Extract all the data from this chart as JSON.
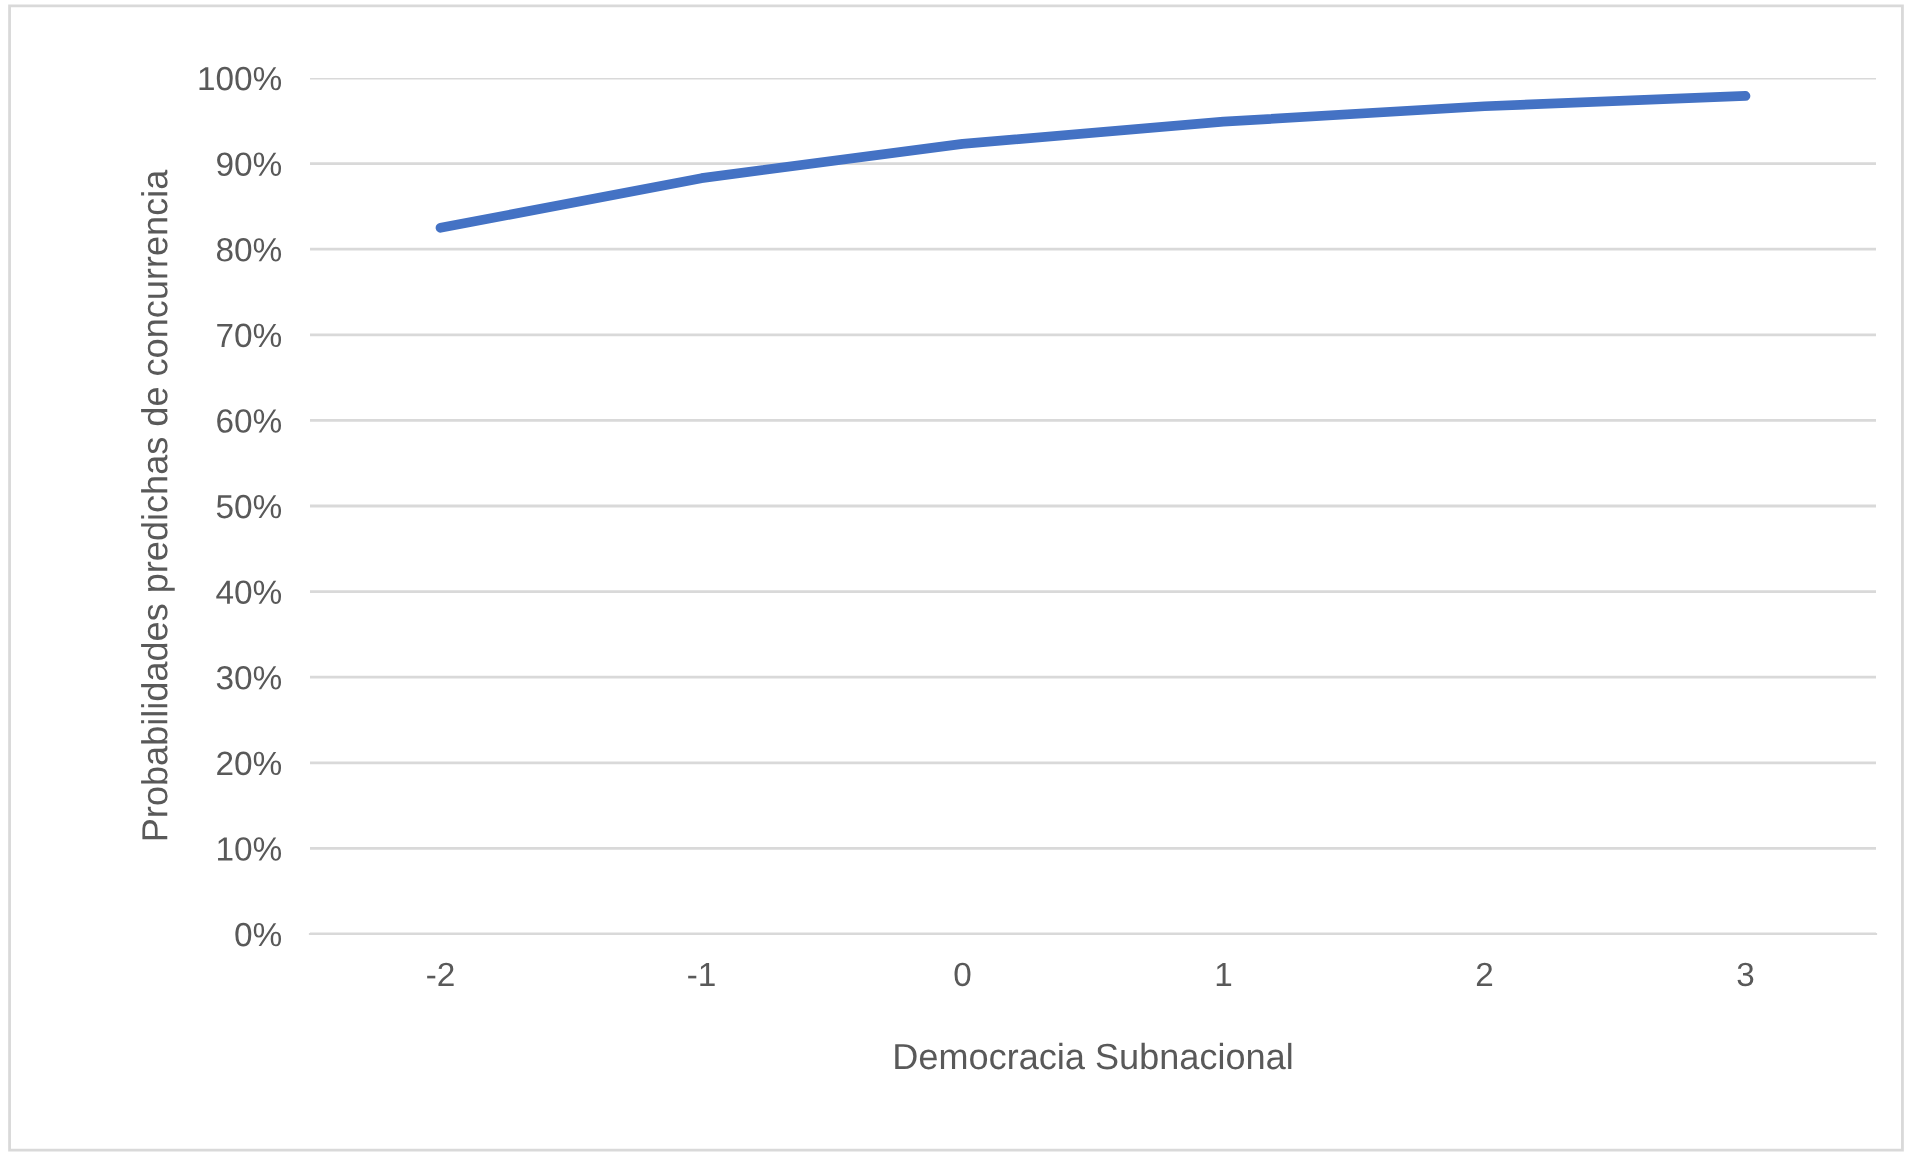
{
  "chart_data": {
    "type": "line",
    "xlabel": "Democracia Subnacional",
    "ylabel": "Probabilidades predichas de concurrencia",
    "categories": [
      "-2",
      "-1",
      "0",
      "1",
      "2",
      "3"
    ],
    "series": [
      {
        "color": "#4472c4",
        "values": [
          82.5,
          88.3,
          92.3,
          94.9,
          96.7,
          97.9
        ]
      }
    ],
    "ylim": [
      0,
      100
    ],
    "yticks": [
      {
        "value": 0,
        "label": "0%"
      },
      {
        "value": 10,
        "label": "10%"
      },
      {
        "value": 20,
        "label": "20%"
      },
      {
        "value": 30,
        "label": "30%"
      },
      {
        "value": 40,
        "label": "40%"
      },
      {
        "value": 50,
        "label": "50%"
      },
      {
        "value": 60,
        "label": "60%"
      },
      {
        "value": 70,
        "label": "70%"
      },
      {
        "value": 80,
        "label": "80%"
      },
      {
        "value": 90,
        "label": "90%"
      },
      {
        "value": 100,
        "label": "100%"
      }
    ],
    "grid": "y",
    "marker": "none",
    "line_style": "solid",
    "legend": false
  }
}
